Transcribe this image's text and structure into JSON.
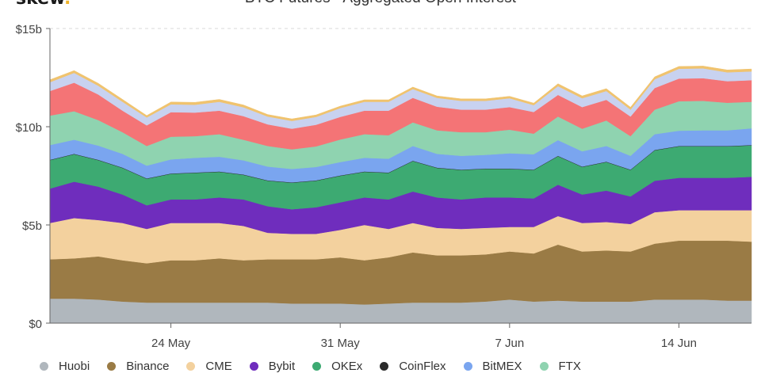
{
  "brand": {
    "name": "skew",
    "dot": "."
  },
  "chart_data": {
    "type": "area",
    "stacked": true,
    "title": "BTC Futures - Aggregated Open Interest",
    "xlabel": "",
    "ylabel": "",
    "ylim": [
      0,
      15
    ],
    "y_unit": "b",
    "y_ticks": [
      "$0",
      "$5b",
      "$10b",
      "$15b"
    ],
    "y_tick_values": [
      0,
      5,
      10,
      15
    ],
    "x_ticks": [
      "24 May",
      "31 May",
      "7 Jun",
      "14 Jun"
    ],
    "x_tick_dates": [
      "2020-05-24",
      "2020-05-31",
      "2020-06-07",
      "2020-06-14"
    ],
    "x_dates": [
      "2020-05-19",
      "2020-05-20",
      "2020-05-21",
      "2020-05-22",
      "2020-05-23",
      "2020-05-24",
      "2020-05-25",
      "2020-05-26",
      "2020-05-27",
      "2020-05-28",
      "2020-05-29",
      "2020-05-30",
      "2020-05-31",
      "2020-06-01",
      "2020-06-02",
      "2020-06-03",
      "2020-06-04",
      "2020-06-05",
      "2020-06-06",
      "2020-06-07",
      "2020-06-08",
      "2020-06-09",
      "2020-06-10",
      "2020-06-11",
      "2020-06-12",
      "2020-06-13",
      "2020-06-14",
      "2020-06-15",
      "2020-06-16",
      "2020-06-17"
    ],
    "grid": "horizontal-dashed",
    "legend_position": "bottom",
    "series": [
      {
        "name": "Huobi",
        "color": "#b0b7bd",
        "values": [
          1.25,
          1.25,
          1.2,
          1.1,
          1.05,
          1.05,
          1.05,
          1.05,
          1.05,
          1.05,
          1.0,
          1.0,
          1.0,
          0.95,
          1.0,
          1.05,
          1.05,
          1.05,
          1.1,
          1.2,
          1.1,
          1.15,
          1.1,
          1.1,
          1.1,
          1.2,
          1.2,
          1.2,
          1.15,
          1.15
        ]
      },
      {
        "name": "Binance",
        "color": "#9a7b45",
        "values": [
          2.0,
          2.05,
          2.2,
          2.1,
          2.0,
          2.15,
          2.15,
          2.25,
          2.15,
          2.2,
          2.25,
          2.25,
          2.35,
          2.25,
          2.35,
          2.55,
          2.4,
          2.4,
          2.4,
          2.45,
          2.45,
          2.85,
          2.55,
          2.6,
          2.55,
          2.85,
          3.0,
          3.0,
          3.05,
          3.0
        ]
      },
      {
        "name": "CME",
        "color": "#f3d19e",
        "values": [
          1.85,
          2.05,
          1.85,
          1.9,
          1.75,
          1.9,
          1.9,
          1.8,
          1.75,
          1.35,
          1.3,
          1.3,
          1.4,
          1.8,
          1.45,
          1.5,
          1.4,
          1.35,
          1.35,
          1.25,
          1.35,
          1.45,
          1.45,
          1.45,
          1.4,
          1.6,
          1.55,
          1.55,
          1.55,
          1.6
        ]
      },
      {
        "name": "Bybit",
        "color": "#6f2dbd",
        "values": [
          1.75,
          1.85,
          1.7,
          1.45,
          1.2,
          1.2,
          1.2,
          1.3,
          1.35,
          1.35,
          1.25,
          1.35,
          1.4,
          1.4,
          1.5,
          1.6,
          1.55,
          1.5,
          1.55,
          1.5,
          1.45,
          1.6,
          1.45,
          1.6,
          1.4,
          1.6,
          1.65,
          1.65,
          1.65,
          1.7
        ]
      },
      {
        "name": "OKEx",
        "color": "#3daa72",
        "values": [
          1.45,
          1.4,
          1.35,
          1.35,
          1.35,
          1.3,
          1.35,
          1.3,
          1.25,
          1.3,
          1.35,
          1.35,
          1.35,
          1.3,
          1.35,
          1.55,
          1.5,
          1.5,
          1.45,
          1.45,
          1.45,
          1.45,
          1.4,
          1.45,
          1.35,
          1.55,
          1.6,
          1.6,
          1.6,
          1.6
        ]
      },
      {
        "name": "CoinFlex",
        "color": "#2b2b2b",
        "values": [
          0.02,
          0.02,
          0.02,
          0.02,
          0.02,
          0.02,
          0.02,
          0.02,
          0.02,
          0.02,
          0.02,
          0.02,
          0.02,
          0.02,
          0.02,
          0.02,
          0.02,
          0.02,
          0.02,
          0.02,
          0.02,
          0.02,
          0.02,
          0.02,
          0.02,
          0.02,
          0.02,
          0.02,
          0.02,
          0.02
        ]
      },
      {
        "name": "BitMEX",
        "color": "#7aa5ef",
        "values": [
          0.75,
          0.72,
          0.72,
          0.7,
          0.65,
          0.72,
          0.75,
          0.75,
          0.72,
          0.7,
          0.68,
          0.68,
          0.68,
          0.7,
          0.7,
          0.75,
          0.7,
          0.7,
          0.7,
          0.78,
          0.78,
          0.8,
          0.78,
          0.8,
          0.7,
          0.8,
          0.78,
          0.8,
          0.8,
          0.85
        ]
      },
      {
        "name": "FTX",
        "color": "#8fd3b0",
        "values": [
          1.5,
          1.45,
          1.3,
          1.1,
          1.0,
          1.15,
          1.1,
          1.15,
          1.05,
          1.05,
          1.0,
          1.05,
          1.15,
          1.2,
          1.2,
          1.2,
          1.2,
          1.2,
          1.15,
          1.2,
          1.05,
          1.2,
          1.15,
          1.3,
          1.0,
          1.25,
          1.5,
          1.5,
          1.4,
          1.35
        ]
      },
      {
        "name": "",
        "color": "#f47476",
        "values": [
          1.25,
          1.45,
          1.3,
          1.1,
          1.05,
          1.25,
          1.2,
          1.2,
          1.2,
          1.1,
          1.05,
          1.1,
          1.15,
          1.2,
          1.25,
          1.25,
          1.2,
          1.15,
          1.15,
          1.15,
          1.1,
          1.1,
          1.1,
          1.05,
          1.0,
          1.1,
          1.15,
          1.15,
          1.1,
          1.1
        ]
      },
      {
        "name": "",
        "color": "#c8d2f0",
        "values": [
          0.45,
          0.5,
          0.45,
          0.45,
          0.4,
          0.4,
          0.4,
          0.45,
          0.45,
          0.4,
          0.4,
          0.4,
          0.45,
          0.45,
          0.45,
          0.45,
          0.45,
          0.45,
          0.45,
          0.45,
          0.35,
          0.45,
          0.45,
          0.45,
          0.35,
          0.45,
          0.5,
          0.5,
          0.45,
          0.45
        ]
      },
      {
        "name": "",
        "color": "#f0c36e",
        "values": [
          0.12,
          0.12,
          0.12,
          0.12,
          0.1,
          0.12,
          0.12,
          0.12,
          0.12,
          0.1,
          0.1,
          0.1,
          0.1,
          0.1,
          0.1,
          0.1,
          0.1,
          0.1,
          0.1,
          0.1,
          0.1,
          0.12,
          0.12,
          0.12,
          0.12,
          0.12,
          0.12,
          0.12,
          0.12,
          0.12
        ]
      }
    ]
  }
}
